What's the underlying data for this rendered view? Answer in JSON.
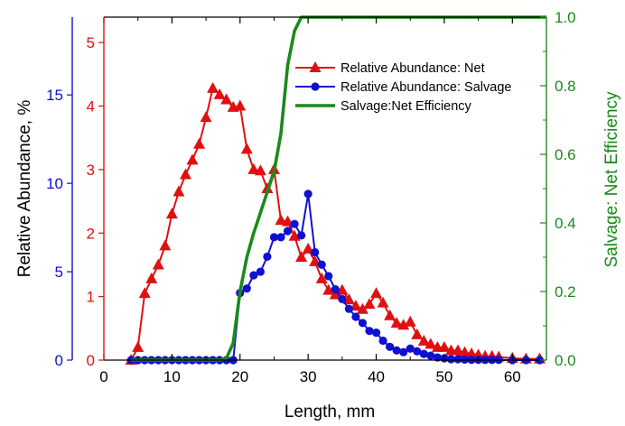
{
  "chart_data": {
    "type": "line",
    "xlabel": "Length, mm",
    "ylabel": "Relative Abundance, %",
    "y2label": "Salvage: Net Efficiency",
    "xlim": [
      0,
      65
    ],
    "x_ticks": [
      "0",
      "10",
      "20",
      "30",
      "40",
      "50",
      "60"
    ],
    "x_tick_values": [
      0,
      10,
      20,
      30,
      40,
      50,
      60
    ],
    "left_outer_axis": {
      "ylim": [
        0,
        19.4
      ],
      "color": "#1010d0",
      "ticks": [
        "0",
        "5",
        "10",
        "15"
      ],
      "tick_values": [
        0,
        5,
        10,
        15
      ]
    },
    "left_inner_axis": {
      "ylim": [
        0,
        5.4
      ],
      "color": "#e01010",
      "ticks": [
        "0",
        "1",
        "2",
        "3",
        "4",
        "5"
      ],
      "tick_values": [
        0,
        1,
        2,
        3,
        4,
        5
      ]
    },
    "right_axis": {
      "ylim": [
        0,
        1.0
      ],
      "color": "#1a8a1a",
      "ticks": [
        "0.0",
        "0.2",
        "0.4",
        "0.6",
        "0.8",
        "1.0"
      ],
      "tick_values": [
        0,
        0.2,
        0.4,
        0.6,
        0.8,
        1.0
      ]
    },
    "legend_position": "top-right",
    "series": [
      {
        "name": "Relative Abundance: Net",
        "axis": "left_inner",
        "color": "#e01010",
        "marker": "triangle",
        "x": [
          4,
          5,
          6,
          7,
          8,
          9,
          10,
          11,
          12,
          13,
          14,
          15,
          16,
          17,
          18,
          19,
          20,
          21,
          22,
          23,
          24,
          25,
          26,
          27,
          28,
          29,
          30,
          31,
          32,
          33,
          34,
          35,
          36,
          37,
          38,
          39,
          40,
          41,
          42,
          43,
          44,
          45,
          46,
          47,
          48,
          49,
          50,
          51,
          52,
          53,
          54,
          55,
          56,
          57,
          58,
          60,
          62,
          64
        ],
        "y": [
          0.0,
          0.2,
          1.05,
          1.28,
          1.5,
          1.8,
          2.3,
          2.65,
          2.92,
          3.15,
          3.4,
          3.82,
          4.28,
          4.18,
          4.1,
          3.98,
          4.0,
          3.32,
          3.0,
          2.98,
          2.7,
          3.0,
          2.2,
          2.18,
          1.95,
          1.62,
          1.75,
          1.55,
          1.28,
          1.1,
          1.03,
          1.1,
          0.95,
          0.85,
          0.8,
          0.88,
          1.05,
          0.9,
          0.7,
          0.58,
          0.55,
          0.6,
          0.4,
          0.3,
          0.25,
          0.2,
          0.2,
          0.15,
          0.15,
          0.12,
          0.1,
          0.08,
          0.06,
          0.06,
          0.05,
          0.03,
          0.02,
          0.02
        ]
      },
      {
        "name": "Relative Abundance: Salvage",
        "axis": "left_outer",
        "color": "#1010d0",
        "marker": "circle",
        "x": [
          4,
          5,
          6,
          7,
          8,
          9,
          10,
          11,
          12,
          13,
          14,
          15,
          16,
          17,
          18,
          19,
          20,
          21,
          22,
          23,
          24,
          25,
          26,
          27,
          28,
          29,
          30,
          31,
          32,
          33,
          34,
          35,
          36,
          37,
          38,
          39,
          40,
          41,
          42,
          43,
          44,
          45,
          46,
          47,
          48,
          49,
          50,
          51,
          52,
          53,
          54,
          55,
          56,
          57,
          58,
          60,
          62,
          64
        ],
        "y": [
          0,
          0,
          0,
          0,
          0,
          0,
          0,
          0,
          0,
          0,
          0,
          0,
          0,
          0,
          0,
          0,
          3.8,
          4.05,
          4.8,
          5.0,
          5.85,
          6.95,
          6.95,
          7.3,
          7.7,
          7.05,
          9.4,
          6.1,
          5.4,
          4.75,
          4.0,
          3.45,
          2.9,
          2.45,
          2.1,
          1.65,
          1.55,
          1.1,
          0.75,
          0.55,
          0.45,
          0.65,
          0.5,
          0.35,
          0.25,
          0.15,
          0.1,
          0.05,
          0.05,
          0.03,
          0.02,
          0.02,
          0.01,
          0.01,
          0.01,
          0,
          0,
          0
        ]
      },
      {
        "name": "Salvage:Net Efficiency",
        "axis": "right",
        "color": "#1a8a1a",
        "marker": "none",
        "x": [
          4,
          17,
          18,
          19,
          20,
          21,
          22,
          23,
          24,
          25,
          26,
          27,
          28,
          29,
          30,
          40,
          50,
          60,
          65
        ],
        "y": [
          0,
          0,
          0.005,
          0.05,
          0.2,
          0.3,
          0.37,
          0.43,
          0.49,
          0.55,
          0.66,
          0.86,
          0.96,
          1.0,
          1.0,
          1.0,
          1.0,
          1.0,
          1.0
        ]
      }
    ]
  }
}
